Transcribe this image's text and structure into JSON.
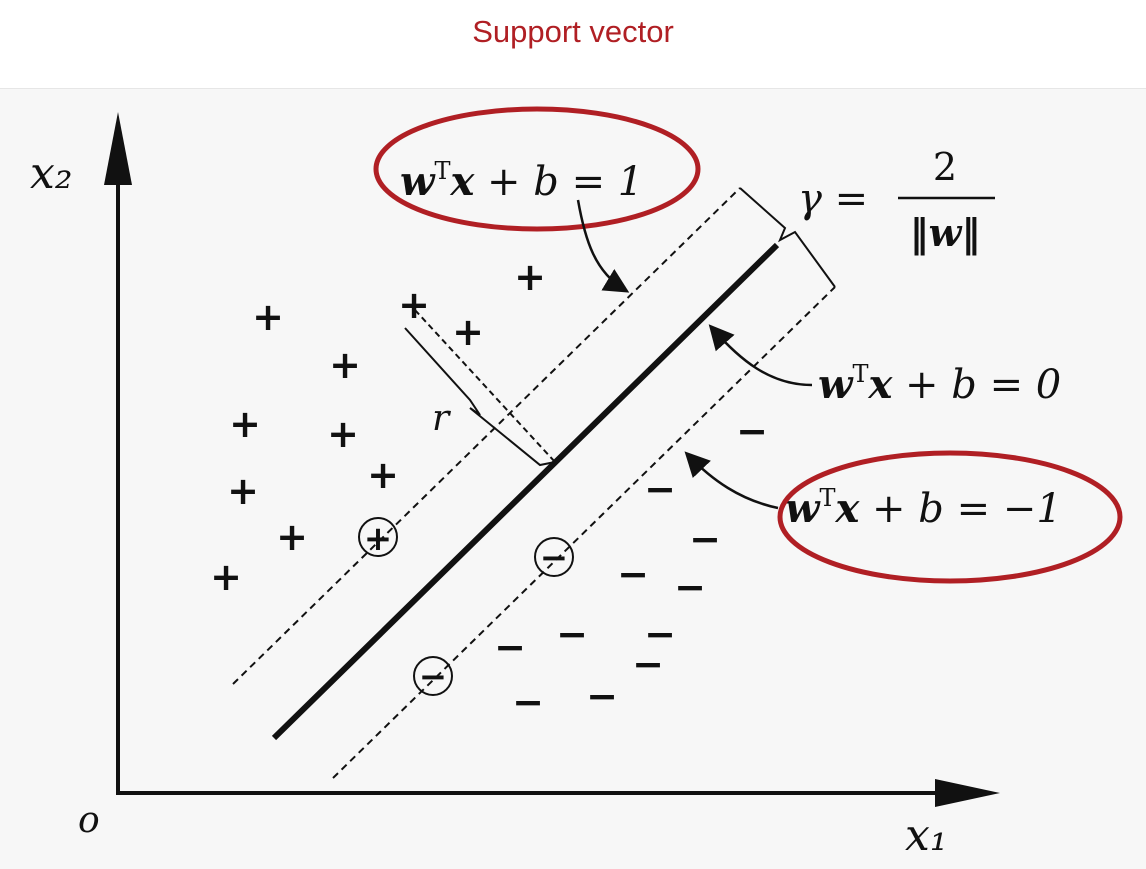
{
  "header": {
    "title": "Support vector"
  },
  "axes": {
    "y_label": "x₂",
    "x_label": "x₁",
    "origin_label": "o"
  },
  "equations": {
    "upper_margin": {
      "w": "w",
      "sup": "T",
      "rest_x": "x",
      "rest": " + b = 1"
    },
    "decision_boundary": {
      "w": "w",
      "sup": "T",
      "rest_x": "x",
      "rest": " + b = 0"
    },
    "lower_margin": {
      "w": "w",
      "sup": "T",
      "rest_x": "x",
      "rest": " + b = −1"
    },
    "margin_width": {
      "lhs": "γ =",
      "numerator": "2",
      "denominator": "‖w‖"
    },
    "distance_label": "r"
  },
  "points": {
    "positive_symbol": "+",
    "negative_symbol": "−"
  },
  "colors": {
    "highlight": "#b01f24",
    "ink": "#111111",
    "background": "#f7f7f7"
  }
}
